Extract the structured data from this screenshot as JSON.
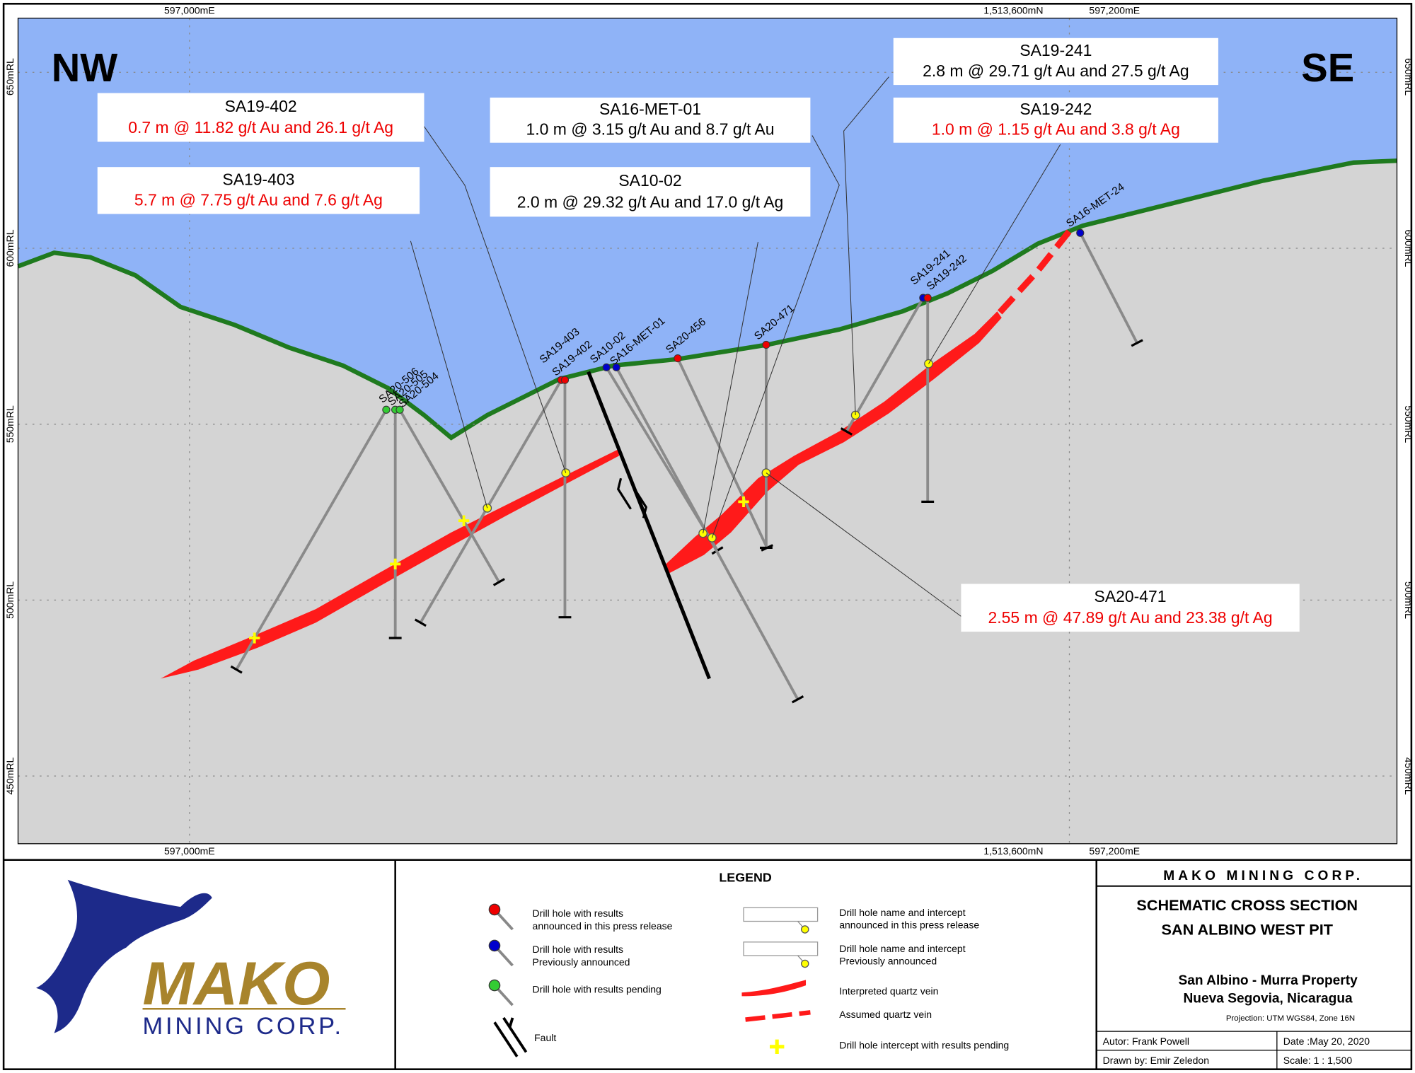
{
  "coordinates": {
    "top": [
      "597,000mE",
      "1,513,600mN",
      "597,200mE"
    ],
    "bottom": [
      "597,000mE",
      "1,513,600mN",
      "597,200mE"
    ],
    "left": [
      "650mRL",
      "600mRL",
      "550mRL",
      "500mRL",
      "450mRL"
    ],
    "right": [
      "650mRL",
      "600mRL",
      "550mRL",
      "500mRL",
      "450mRL"
    ]
  },
  "orientation": {
    "left": "NW",
    "right": "SE"
  },
  "intercepts": [
    {
      "hole": "SA19-402",
      "text": "0.7 m @ 11.82 g/t Au and 26.1 g/t Ag"
    },
    {
      "hole": "SA19-403",
      "text": "5.7 m @ 7.75 g/t Au and 7.6 g/t Ag"
    },
    {
      "hole": "SA16-MET-01",
      "text": "1.0 m @ 3.15 g/t Au and 8.7 g/t Au"
    },
    {
      "hole": "SA10-02",
      "text": "2.0 m @ 29.32 g/t Au and 17.0 g/t Ag"
    },
    {
      "hole": "SA19-241",
      "text": "2.8 m @ 29.71 g/t Au and 27.5 g/t Ag"
    },
    {
      "hole": "SA19-242",
      "text": "1.0 m @ 1.15 g/t Au and 3.8 g/t Ag"
    },
    {
      "hole": "SA20-471",
      "text": "2.55 m @ 47.89 g/t Au and 23.38 g/t Ag"
    }
  ],
  "drill_holes": [
    "SA20-506",
    "SA20-505",
    "SA20-504",
    "SA19-403",
    "SA19-402",
    "SA10-02",
    "SA16-MET-01",
    "SA20-456",
    "SA20-471",
    "SA19-241",
    "SA19-242",
    "SA16-MET-24"
  ],
  "legend": {
    "title": "LEGEND",
    "items": [
      [
        "Drill hole with results",
        "announced in this press release"
      ],
      [
        "Drill hole with results",
        "Previously announced"
      ],
      [
        "Drill hole with results pending"
      ],
      [
        "Fault"
      ],
      [
        "Drill hole name and intercept",
        "announced in this press release"
      ],
      [
        "Drill hole name and intercept",
        "Previously announced"
      ],
      [
        "Interpreted quartz vein"
      ],
      [
        "Assumed quartz vein"
      ],
      [
        "Drill hole intercept with results pending"
      ]
    ]
  },
  "title_block": {
    "company": "MAKO MINING CORP.",
    "title": [
      "SCHEMATIC CROSS SECTION",
      "SAN ALBINO WEST PIT"
    ],
    "property": [
      "San Albino - Murra Property",
      "Nueva Segovia, Nicaragua"
    ],
    "projection": "Projection: UTM WGS84, Zone 16N",
    "author": "Autor: Frank Powell",
    "date": "Date :May 20,  2020",
    "drawn_by": "Drawn by: Emir Zeledon",
    "scale": "Scale: 1 : 1,500"
  },
  "logo": {
    "name": "MAKO",
    "tagline": "MINING CORP."
  }
}
